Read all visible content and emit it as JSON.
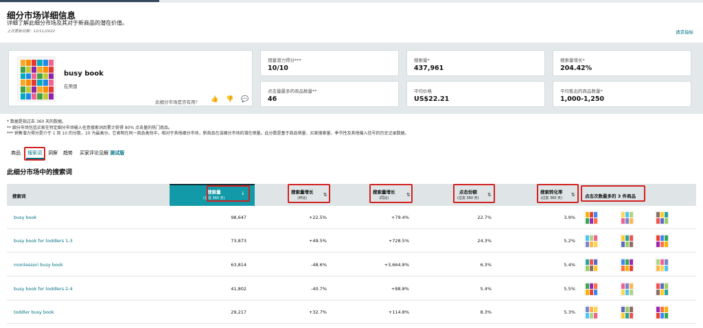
{
  "header": {
    "title": "细分市场详细信息",
    "subtitle": "详细了解此细分市场及其对于新商品的潜在价值。",
    "last_updated": "上次更新日期：12/11/2022",
    "request_metrics_link": "请求指标"
  },
  "product": {
    "name": "busy book",
    "location": "在美国",
    "useful_question": "此细分市场是否有用?",
    "feedback_icons": [
      "thumbs-up-icon",
      "thumbs-down-icon",
      "comment-icon"
    ]
  },
  "metrics": [
    {
      "label": "销量潜力得分***",
      "value": "10/10"
    },
    {
      "label": "搜索量*",
      "value": "437,961"
    },
    {
      "label": "搜索量增长*",
      "value": "204.42%"
    },
    {
      "label": "点击量最多的商品数量**",
      "value": "46"
    },
    {
      "label": "平均价格",
      "value": "US$22.21"
    },
    {
      "label": "平均售出的商品数量*",
      "value": "1,000-1,250"
    }
  ],
  "notes": [
    "* 数据是指过去 360 天的数据。",
    "** 细分市场包括买家在特定细分市场输入任意搜索词后累计获得 80% 点击量的热门商品。",
    "*** 销售潜力得分是介于 1 到 10 的分数，10 为最高分。它表明在同一商品类别中，相对于其他细分市场，新商品在该细分市场的潜在销量。此分数是基于商品销量、买家搜索量、季节性及其他输入信号的历史记录数据。"
  ],
  "tabs": [
    {
      "label": "商品"
    },
    {
      "label": "搜索词"
    },
    {
      "label": "洞察"
    },
    {
      "label": "趋势"
    },
    {
      "label": "买家评论见解",
      "badge": "测试版"
    }
  ],
  "section_title": "此细分市场中的搜索词",
  "table": {
    "columns": {
      "keyword": "搜索词",
      "search_volume": "搜索量",
      "search_volume_sub": "(过去 360 天)",
      "growth_qoq": "搜索量增长",
      "growth_qoq_sub": "(环比)",
      "growth_yoy": "搜索量增长",
      "growth_yoy_sub": "(同比)",
      "click_share": "点击份额",
      "click_share_sub": "(过去 360 天)",
      "conversion": "搜索转化率",
      "conversion_sub": "(过去 360 天)",
      "top_products": "点击次数最多的 3 件商品"
    },
    "rows": [
      {
        "keyword": "busy book",
        "search_volume": "98,647",
        "growth_qoq": "+22.5%",
        "growth_yoy": "+79.4%",
        "click_share": "22.7%",
        "conversion": "3.9%"
      },
      {
        "keyword": "busy book for toddlers 1-3",
        "search_volume": "73,873",
        "growth_qoq": "+49.5%",
        "growth_yoy": "+728.5%",
        "click_share": "24.3%",
        "conversion": "5.2%"
      },
      {
        "keyword": "montessori busy book",
        "search_volume": "63,814",
        "growth_qoq": "-48.6%",
        "growth_yoy": "+3,664.8%",
        "click_share": "6.3%",
        "conversion": "5.4%"
      },
      {
        "keyword": "busy book for toddlers 2-4",
        "search_volume": "41,802",
        "growth_qoq": "-40.7%",
        "growth_yoy": "+88.8%",
        "click_share": "5.4%",
        "conversion": "5.5%"
      },
      {
        "keyword": "toddler busy book",
        "search_volume": "29,217",
        "growth_qoq": "+32.7%",
        "growth_yoy": "+114.8%",
        "click_share": "8.3%",
        "conversion": "5.3%"
      }
    ]
  },
  "colors": {
    "accent_teal": "#007185",
    "sorted_header": "#139aa8",
    "highlight_red": "#d21f1f",
    "panel_bg": "#e3e8ea"
  }
}
